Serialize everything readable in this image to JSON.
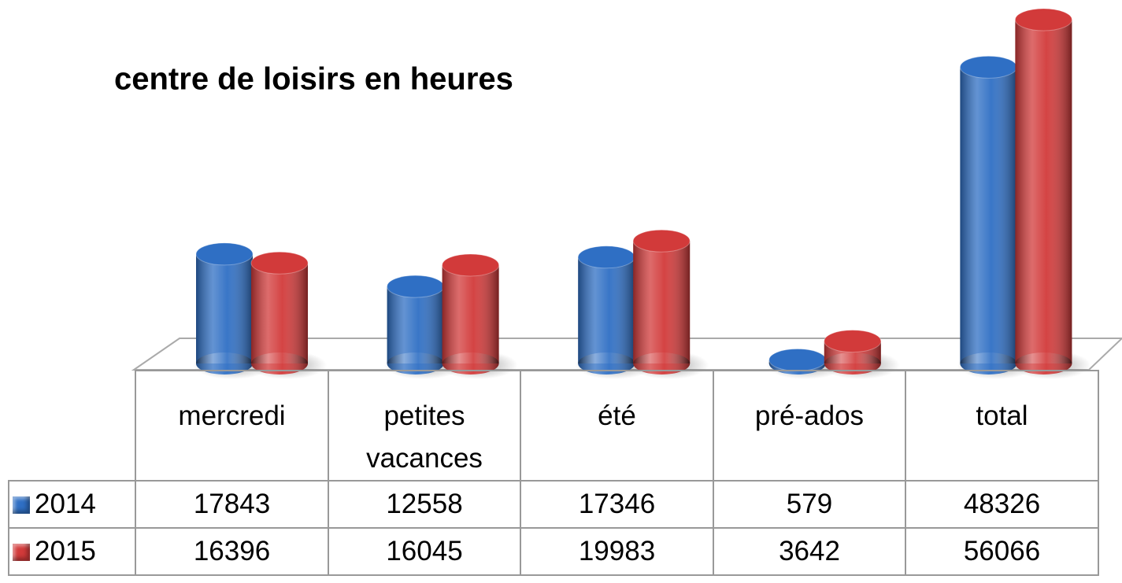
{
  "chart_data": {
    "type": "bar",
    "title": "centre de loisirs en heures",
    "categories": [
      "mercredi",
      "petites vacances",
      "été",
      "pré-ados",
      "total"
    ],
    "series": [
      {
        "name": "2014",
        "color": "#2f6fc4",
        "values": [
          17843,
          12558,
          17346,
          579,
          48326
        ]
      },
      {
        "name": "2015",
        "color": "#d23a3a",
        "values": [
          16396,
          16045,
          19983,
          3642,
          56066
        ]
      }
    ]
  }
}
